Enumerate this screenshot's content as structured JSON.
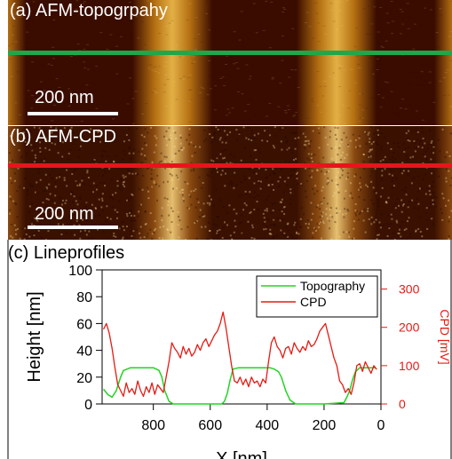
{
  "panel_a": {
    "label": "(a) AFM-topogrpahy",
    "scale_bar_label": "200 nm",
    "line_color": "#1fa84a",
    "stripe_colors": [
      "#3a0c00",
      "#b46f12",
      "#e3b045"
    ]
  },
  "panel_b": {
    "label": "(b) AFM-CPD",
    "scale_bar_label": "200 nm",
    "line_color": "#e8141c",
    "stripe_colors": [
      "#3a1000",
      "#8a4a10",
      "#e6c070"
    ]
  },
  "panel_c": {
    "label": "(c) Lineprofiles"
  },
  "chart_data": {
    "type": "line",
    "xlabel": "X [nm]",
    "ylabel": "Height [nm]",
    "y2label": "CPD [mV]",
    "xlim": [
      980,
      0
    ],
    "ylim": [
      0,
      100
    ],
    "y2lim": [
      0,
      350
    ],
    "xticks": [
      800,
      600,
      400,
      200,
      0
    ],
    "yticks": [
      0,
      20,
      40,
      60,
      80,
      100
    ],
    "y2ticks": [
      0,
      100,
      200,
      300
    ],
    "legend_position": "top-right",
    "series": [
      {
        "name": "Topography",
        "axis": "left",
        "color": "#22d322",
        "x": [
          975,
          960,
          945,
          930,
          915,
          905,
          880,
          850,
          820,
          800,
          790,
          780,
          770,
          760,
          745,
          730,
          700,
          650,
          600,
          560,
          550,
          540,
          530,
          520,
          500,
          470,
          440,
          410,
          390,
          375,
          360,
          350,
          335,
          320,
          300,
          250,
          200,
          130,
          120,
          110,
          100,
          90,
          75,
          60,
          40,
          20
        ],
        "values": [
          11,
          7,
          5,
          10,
          20,
          25,
          27,
          27,
          27,
          27,
          26,
          25,
          20,
          10,
          2,
          0,
          0,
          0,
          0,
          0,
          2,
          8,
          18,
          26,
          27,
          27,
          27,
          27,
          27,
          26,
          24,
          20,
          10,
          3,
          0,
          0,
          0,
          1,
          5,
          10,
          18,
          24,
          27,
          27,
          27,
          27
        ]
      },
      {
        "name": "CPD",
        "axis": "right",
        "color": "#e51b14",
        "x": [
          975,
          965,
          955,
          945,
          935,
          925,
          915,
          905,
          895,
          885,
          875,
          865,
          855,
          845,
          835,
          825,
          815,
          805,
          795,
          785,
          775,
          765,
          755,
          745,
          735,
          725,
          715,
          705,
          695,
          685,
          675,
          665,
          655,
          645,
          635,
          625,
          615,
          605,
          595,
          585,
          575,
          565,
          555,
          545,
          535,
          525,
          515,
          505,
          495,
          485,
          475,
          465,
          455,
          445,
          435,
          425,
          415,
          405,
          395,
          385,
          375,
          365,
          355,
          345,
          335,
          325,
          315,
          305,
          295,
          285,
          275,
          265,
          255,
          245,
          235,
          225,
          215,
          205,
          195,
          185,
          175,
          165,
          155,
          145,
          135,
          125,
          115,
          105,
          95,
          85,
          75,
          65,
          55,
          45,
          35,
          25,
          15
        ],
        "values": [
          195,
          210,
          185,
          145,
          95,
          50,
          35,
          20,
          55,
          30,
          40,
          25,
          60,
          35,
          20,
          45,
          30,
          55,
          25,
          50,
          40,
          30,
          70,
          110,
          160,
          145,
          135,
          120,
          150,
          130,
          145,
          125,
          135,
          155,
          140,
          160,
          170,
          150,
          165,
          180,
          190,
          210,
          240,
          200,
          150,
          100,
          60,
          55,
          70,
          50,
          65,
          45,
          70,
          55,
          60,
          45,
          65,
          55,
          110,
          160,
          175,
          150,
          140,
          120,
          145,
          150,
          130,
          160,
          145,
          135,
          150,
          140,
          165,
          150,
          155,
          170,
          190,
          200,
          210,
          180,
          150,
          120,
          100,
          60,
          50,
          30,
          40,
          25,
          55,
          100,
          105,
          85,
          110,
          95,
          80,
          100,
          90
        ]
      }
    ]
  }
}
